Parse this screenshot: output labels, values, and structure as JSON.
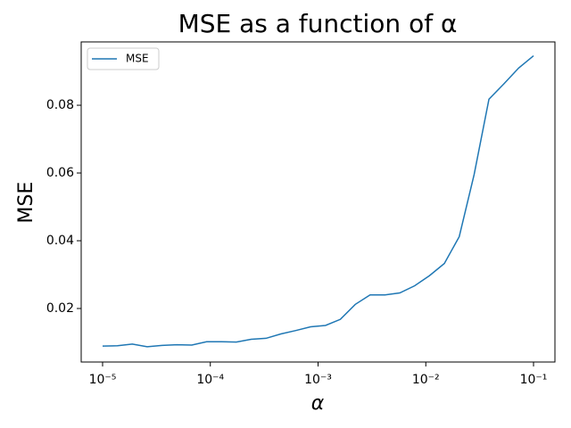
{
  "chart_data": {
    "type": "line",
    "title": "MSE as a function of α",
    "xlabel": "α",
    "ylabel": "MSE",
    "xscale": "log",
    "legend": "upper left",
    "x": [
      1e-05,
      1.374e-05,
      1.887e-05,
      2.593e-05,
      3.562e-05,
      4.894e-05,
      6.723e-05,
      9.237e-05,
      0.0001269,
      0.0001743,
      0.0002395,
      0.000329,
      0.000452,
      0.000621,
      0.0008532,
      0.001172,
      0.00161,
      0.002212,
      0.003039,
      0.004175,
      0.005736,
      0.00788,
      0.01083,
      0.01487,
      0.02043,
      0.02807,
      0.03857,
      0.05298,
      0.07279,
      0.1
    ],
    "series": [
      {
        "name": "MSE",
        "color": "#1f77b4",
        "values": [
          0.0089,
          0.009,
          0.0095,
          0.0087,
          0.0091,
          0.0093,
          0.0092,
          0.0102,
          0.0102,
          0.0101,
          0.0109,
          0.0112,
          0.0125,
          0.0135,
          0.0146,
          0.015,
          0.0168,
          0.0212,
          0.024,
          0.024,
          0.0246,
          0.0267,
          0.0297,
          0.0333,
          0.0412,
          0.0595,
          0.0818,
          0.0863,
          0.091,
          0.0946
        ]
      }
    ],
    "xlim": [
      6.33e-06,
      0.158
    ],
    "ylim": [
      0.0042,
      0.0987
    ],
    "xticks": [
      {
        "value": 1e-05,
        "label": "10⁻⁵"
      },
      {
        "value": 0.0001,
        "label": "10⁻⁴"
      },
      {
        "value": 0.001,
        "label": "10⁻³"
      },
      {
        "value": 0.01,
        "label": "10⁻²"
      },
      {
        "value": 0.1,
        "label": "10⁻¹"
      }
    ],
    "yticks": [
      0.02,
      0.04,
      0.06,
      0.08
    ]
  }
}
